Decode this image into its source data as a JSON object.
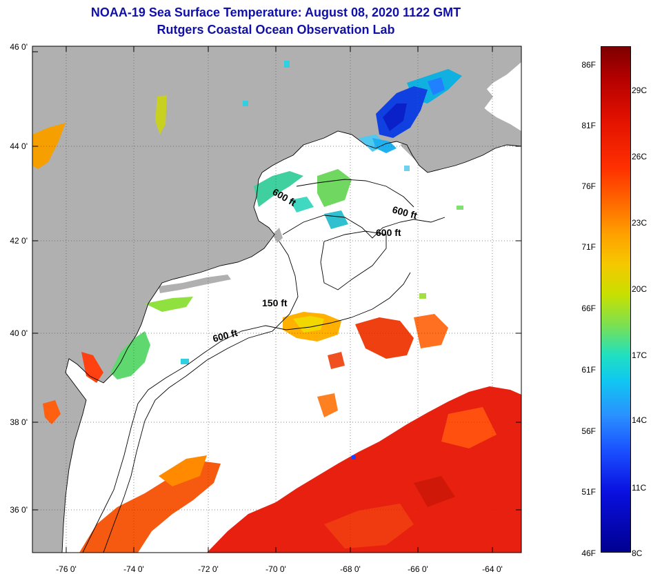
{
  "title_line1": "NOAA-19 Sea Surface Temperature:  August 08, 2020 1122 GMT",
  "title_line2": "Rutgers Coastal Ocean Observation Lab",
  "lat_labels": [
    "46 0'",
    "44 0'",
    "42 0'",
    "40 0'",
    "38 0'",
    "36 0'"
  ],
  "lon_labels": [
    "-76 0'",
    "-74 0'",
    "-72 0'",
    "-70 0'",
    "-68 0'",
    "-66 0'",
    "-64 0'"
  ],
  "contour_labels": [
    "600 ft",
    "600 ft",
    "600 ft",
    "150 ft",
    "600 ft"
  ],
  "colorbar": {
    "fahrenheit": [
      "86F",
      "81F",
      "76F",
      "71F",
      "66F",
      "61F",
      "56F",
      "51F",
      "46F"
    ],
    "celsius": [
      "29C",
      "26C",
      "23C",
      "20C",
      "17C",
      "14C",
      "11C",
      "8C"
    ]
  },
  "colors": {
    "land": "#b0b0b0",
    "title": "#1010a8"
  }
}
